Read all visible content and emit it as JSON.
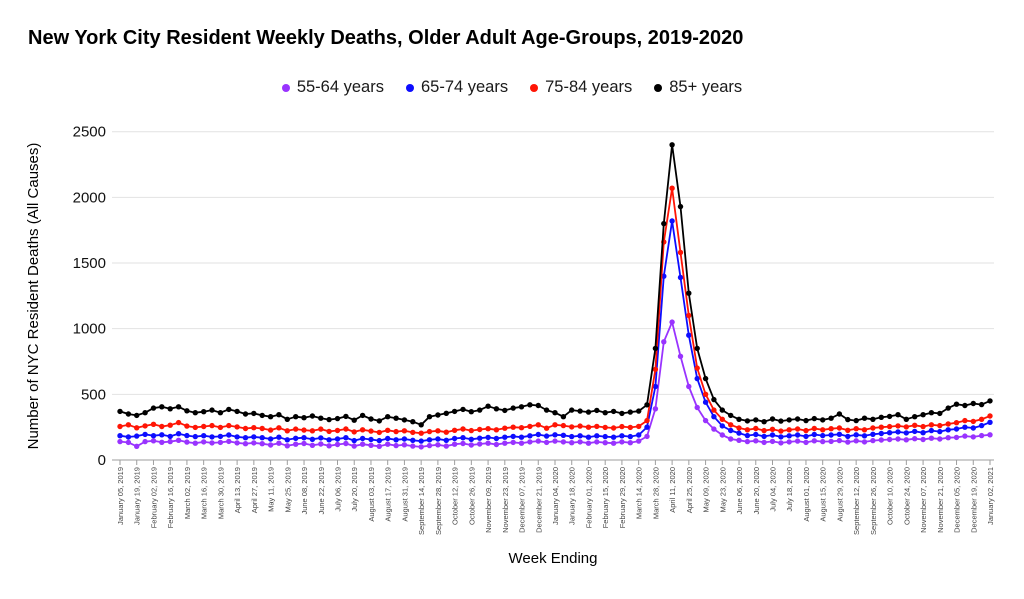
{
  "title": "New York City Resident Weekly Deaths, Older Adult Age-Groups, 2019-2020",
  "legend": {
    "items": [
      {
        "label": "55-64 years",
        "color": "#9933ff"
      },
      {
        "label": "65-74 years",
        "color": "#0d0dff"
      },
      {
        "label": "75-84 years",
        "color": "#ff1505"
      },
      {
        "label": "85+ years",
        "color": "#000000"
      }
    ]
  },
  "chart_data": {
    "type": "line",
    "title": "New York City Resident Weekly Deaths, Older Adult Age-Groups, 2019-2020",
    "xlabel": "Week Ending",
    "ylabel": "Number of NYC Resident Deaths (All Causes)",
    "ylim": [
      0,
      2500
    ],
    "yticks": [
      0,
      500,
      1000,
      1500,
      2000,
      2500
    ],
    "grid": "horizontal",
    "legend_position": "top",
    "marker": "circle",
    "x_label_every": 2,
    "x": [
      "January 05, 2019",
      "January 12, 2019",
      "January 19, 2019",
      "January 26, 2019",
      "February 02, 2019",
      "February 09, 2019",
      "February 16, 2019",
      "February 23, 2019",
      "March 02, 2019",
      "March 09, 2019",
      "March 16, 2019",
      "March 23, 2019",
      "March 30, 2019",
      "April 06, 2019",
      "April 13, 2019",
      "April 20, 2019",
      "April 27, 2019",
      "May 04, 2019",
      "May 11, 2019",
      "May 18, 2019",
      "May 25, 2019",
      "June 01, 2019",
      "June 08, 2019",
      "June 15, 2019",
      "June 22, 2019",
      "June 29, 2019",
      "July 06, 2019",
      "July 13, 2019",
      "July 20, 2019",
      "July 27, 2019",
      "August 03, 2019",
      "August 10, 2019",
      "August 17, 2019",
      "August 24, 2019",
      "August 31, 2019",
      "September 07, 2019",
      "September 14, 2019",
      "September 21, 2019",
      "September 28, 2019",
      "October 05, 2019",
      "October 12, 2019",
      "October 19, 2019",
      "October 26, 2019",
      "November 02, 2019",
      "November 09, 2019",
      "November 16, 2019",
      "November 23, 2019",
      "November 30, 2019",
      "December 07, 2019",
      "December 14, 2019",
      "December 21, 2019",
      "December 28, 2019",
      "January 04, 2020",
      "January 11, 2020",
      "January 18, 2020",
      "January 25, 2020",
      "February 01, 2020",
      "February 08, 2020",
      "February 15, 2020",
      "February 22, 2020",
      "February 29, 2020",
      "March 07, 2020",
      "March 14, 2020",
      "March 21, 2020",
      "March 28, 2020",
      "April 04, 2020",
      "April 11, 2020",
      "April 18, 2020",
      "April 25, 2020",
      "May 02, 2020",
      "May 09, 2020",
      "May 16, 2020",
      "May 23, 2020",
      "May 30, 2020",
      "June 06, 2020",
      "June 13, 2020",
      "June 20, 2020",
      "June 27, 2020",
      "July 04, 2020",
      "July 11, 2020",
      "July 18, 2020",
      "July 25, 2020",
      "August 01, 2020",
      "August 08, 2020",
      "August 15, 2020",
      "August 22, 2020",
      "August 29, 2020",
      "September 05, 2020",
      "September 12, 2020",
      "September 19, 2020",
      "September 26, 2020",
      "October 03, 2020",
      "October 10, 2020",
      "October 17, 2020",
      "October 24, 2020",
      "October 31, 2020",
      "November 07, 2020",
      "November 14, 2020",
      "November 21, 2020",
      "November 28, 2020",
      "December 05, 2020",
      "December 12, 2020",
      "December 19, 2020",
      "December 26, 2020",
      "January 02, 2021"
    ],
    "series": [
      {
        "name": "55-64 years",
        "color": "#9933ff",
        "values": [
          140,
          134,
          104,
          140,
          146,
          135,
          140,
          150,
          136,
          128,
          138,
          130,
          134,
          142,
          130,
          124,
          130,
          124,
          114,
          128,
          108,
          120,
          126,
          112,
          122,
          108,
          118,
          126,
          106,
          120,
          112,
          104,
          120,
          110,
          116,
          106,
          100,
          110,
          116,
          106,
          120,
          126,
          114,
          122,
          128,
          118,
          128,
          134,
          128,
          138,
          144,
          134,
          144,
          138,
          132,
          138,
          128,
          138,
          132,
          128,
          138,
          132,
          144,
          180,
          390,
          900,
          1050,
          790,
          560,
          400,
          300,
          235,
          190,
          160,
          150,
          140,
          146,
          134,
          142,
          130,
          138,
          144,
          134,
          146,
          140,
          142,
          148,
          136,
          146,
          138,
          148,
          152,
          156,
          160,
          154,
          162,
          156,
          166,
          160,
          170,
          172,
          182,
          176,
          186,
          192
        ]
      },
      {
        "name": "65-74 years",
        "color": "#0d0dff",
        "values": [
          185,
          175,
          182,
          195,
          185,
          192,
          180,
          200,
          186,
          178,
          185,
          176,
          180,
          190,
          176,
          170,
          176,
          170,
          160,
          174,
          154,
          165,
          170,
          158,
          168,
          154,
          160,
          170,
          148,
          164,
          156,
          148,
          164,
          154,
          160,
          150,
          144,
          154,
          160,
          150,
          164,
          170,
          158,
          166,
          172,
          164,
          174,
          180,
          174,
          184,
          194,
          182,
          192,
          188,
          178,
          184,
          174,
          184,
          178,
          174,
          184,
          178,
          190,
          250,
          560,
          1400,
          1820,
          1390,
          950,
          620,
          440,
          330,
          260,
          225,
          205,
          186,
          194,
          180,
          190,
          176,
          184,
          190,
          180,
          194,
          186,
          190,
          196,
          180,
          192,
          184,
          196,
          202,
          208,
          214,
          206,
          218,
          208,
          224,
          216,
          230,
          236,
          250,
          244,
          262,
          287
        ]
      },
      {
        "name": "75-84 years",
        "color": "#ff1505",
        "values": [
          255,
          268,
          245,
          260,
          272,
          255,
          265,
          285,
          258,
          248,
          255,
          262,
          248,
          262,
          252,
          240,
          246,
          240,
          228,
          245,
          222,
          235,
          228,
          222,
          235,
          218,
          225,
          236,
          214,
          230,
          220,
          210,
          226,
          216,
          222,
          210,
          204,
          216,
          222,
          212,
          226,
          236,
          224,
          232,
          238,
          230,
          242,
          250,
          246,
          256,
          268,
          242,
          268,
          262,
          252,
          258,
          250,
          256,
          248,
          244,
          254,
          248,
          256,
          300,
          690,
          1660,
          2070,
          1580,
          1100,
          700,
          500,
          380,
          310,
          268,
          244,
          230,
          240,
          224,
          234,
          220,
          230,
          236,
          224,
          240,
          230,
          238,
          244,
          226,
          238,
          230,
          244,
          250,
          254,
          260,
          252,
          264,
          254,
          268,
          262,
          274,
          284,
          300,
          294,
          310,
          335
        ]
      },
      {
        "name": "85+ years",
        "color": "#000000",
        "values": [
          370,
          350,
          340,
          360,
          395,
          405,
          390,
          405,
          375,
          360,
          368,
          380,
          360,
          385,
          370,
          350,
          355,
          340,
          330,
          345,
          310,
          330,
          322,
          335,
          318,
          308,
          315,
          332,
          303,
          340,
          312,
          298,
          330,
          318,
          305,
          292,
          268,
          330,
          343,
          356,
          370,
          385,
          368,
          380,
          410,
          390,
          378,
          395,
          405,
          420,
          415,
          380,
          360,
          330,
          380,
          372,
          365,
          378,
          360,
          370,
          355,
          365,
          372,
          420,
          850,
          1800,
          2400,
          1930,
          1270,
          850,
          620,
          460,
          380,
          340,
          310,
          298,
          305,
          292,
          312,
          296,
          305,
          312,
          300,
          315,
          305,
          318,
          350,
          308,
          300,
          318,
          310,
          325,
          332,
          345,
          310,
          330,
          345,
          360,
          355,
          395,
          425,
          415,
          430,
          422,
          450
        ]
      }
    ]
  }
}
